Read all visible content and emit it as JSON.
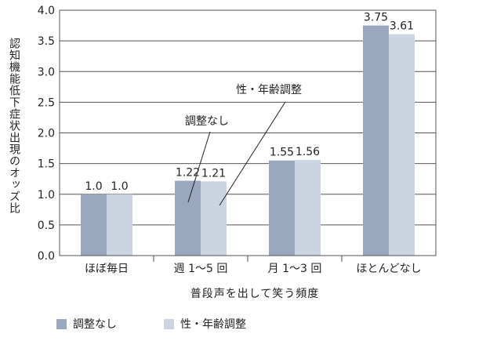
{
  "chart_data": {
    "type": "bar",
    "title": "",
    "ylabel": "認知機能低下症状出現のオッズ比",
    "xlabel": "普段声を出して笑う頻度",
    "categories": [
      "ほぼ毎日",
      "週 1～5 回",
      "月 1～3 回",
      "ほとんどなし"
    ],
    "series": [
      {
        "name": "調整なし",
        "values": [
          1.0,
          1.22,
          1.55,
          3.75
        ],
        "labels": [
          "1.0",
          "1.22",
          "1.55",
          "3.75"
        ],
        "color": "#99a7bf"
      },
      {
        "name": "性・年齢調整",
        "values": [
          1.0,
          1.21,
          1.56,
          3.61
        ],
        "labels": [
          "1.0",
          "1.21",
          "1.56",
          "3.61"
        ],
        "color": "#cbd5e2"
      }
    ],
    "ylim": [
      0,
      4.0
    ],
    "yticks": [
      "0.0",
      "0.5",
      "1.0",
      "1.5",
      "2.0",
      "2.5",
      "3.0",
      "3.5",
      "4.0"
    ],
    "grid": true,
    "legend_position": "bottom-left",
    "annotations": [
      {
        "text": "調整なし",
        "category": "週 1～5 回",
        "series": "調整なし"
      },
      {
        "text": "性・年齢調整",
        "category": "週 1～5 回",
        "series": "性・年齢調整"
      }
    ]
  }
}
